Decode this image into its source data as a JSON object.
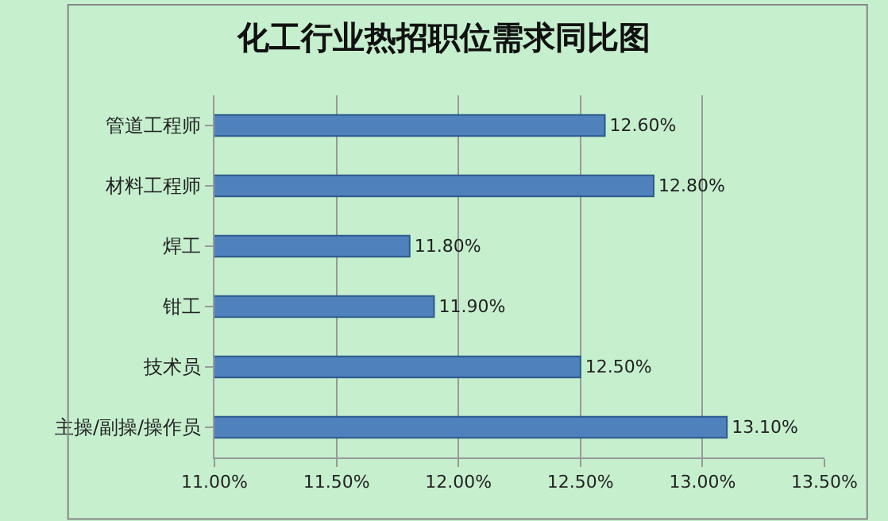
{
  "chart_data": {
    "type": "bar",
    "orientation": "horizontal",
    "title": "化工行业热招职位需求同比图",
    "categories": [
      "管道工程师",
      "材料工程师",
      "焊工",
      "钳工",
      "技术员",
      "主操/副操/操作员"
    ],
    "values": [
      12.6,
      12.8,
      11.8,
      11.9,
      12.5,
      13.1
    ],
    "value_labels": [
      "12.60%",
      "12.80%",
      "11.80%",
      "11.90%",
      "12.50%",
      "13.10%"
    ],
    "color": "#4f81bd",
    "xlim": [
      11,
      13.5
    ],
    "xticks": [
      {
        "value": 11,
        "label": "11.00%"
      },
      {
        "value": 11.5,
        "label": "11.50%"
      },
      {
        "value": 12,
        "label": "12.00%"
      },
      {
        "value": 12.5,
        "label": "12.50%"
      },
      {
        "value": 13,
        "label": "13.00%"
      },
      {
        "value": 13.5,
        "label": "13.50%"
      }
    ],
    "grid": "x",
    "legend": false
  }
}
